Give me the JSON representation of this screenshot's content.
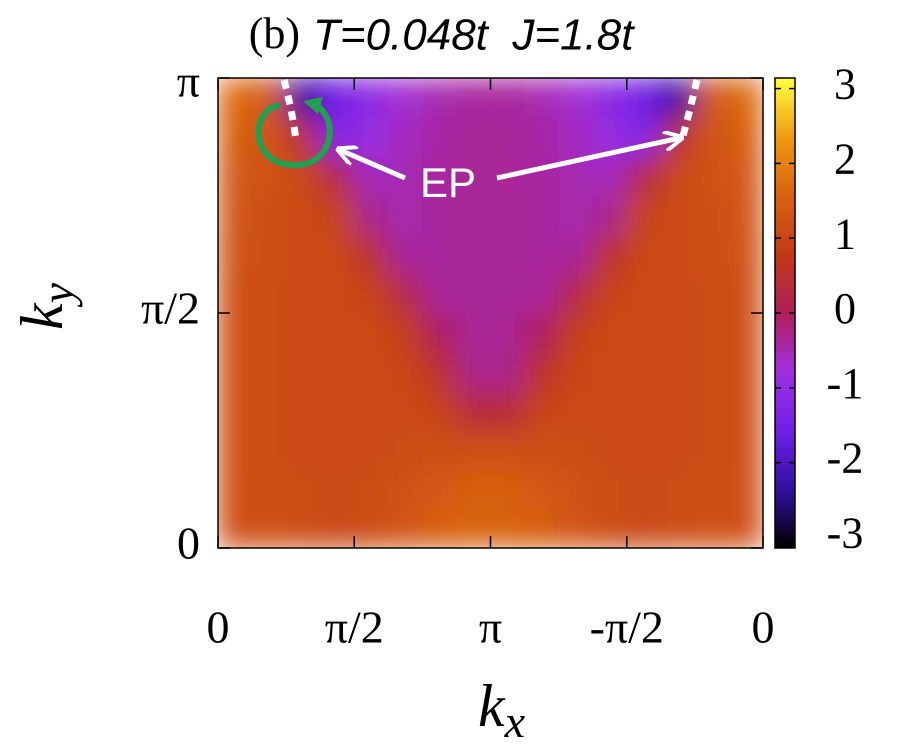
{
  "chart_data": {
    "type": "heatmap",
    "title": "(b)",
    "subtitle": "T=0.048t  J=1.8t",
    "xlabel": {
      "main": "k",
      "sub": "x"
    },
    "ylabel": {
      "main": "k",
      "sub": "y"
    },
    "annotations": [
      "EP"
    ],
    "xlim": [
      0,
      6.2832
    ],
    "ylim": [
      0,
      3.1416
    ],
    "zlim": [
      -3.1416,
      3.1416
    ],
    "xticks": [
      0,
      {
        "value": 1.5708,
        "label": "π/2"
      },
      {
        "value": 3.1416,
        "label": "π"
      },
      {
        "value": 4.7124,
        "label": "-π/2"
      },
      {
        "value": 6.2832,
        "label": "0"
      }
    ],
    "yticks": [
      0,
      {
        "value": 1.5708,
        "label": "π/2"
      },
      {
        "value": 3.1416,
        "label": "π"
      }
    ],
    "zticks": [
      -3,
      -2,
      -1,
      0,
      1,
      2,
      3
    ],
    "colormap": [
      "#000000",
      "#3010a0",
      "#7020e8",
      "#a030e0",
      "#b01e5a",
      "#c23a18",
      "#d86210",
      "#f09a10",
      "#ffff40"
    ],
    "x": [
      0.196,
      0.589,
      0.982,
      1.374,
      1.767,
      2.16,
      2.553,
      2.945,
      3.338,
      3.73,
      4.123,
      4.516,
      4.909,
      5.301,
      5.694,
      6.087
    ],
    "y": [
      0.131,
      0.393,
      0.654,
      0.916,
      1.178,
      1.44,
      1.702,
      1.963,
      2.225,
      2.487,
      2.749,
      3.011
    ],
    "z": [
      [
        1.2,
        1.2,
        1.15,
        1.1,
        1.15,
        1.3,
        1.5,
        1.6,
        1.6,
        1.5,
        1.3,
        1.15,
        1.1,
        1.15,
        1.2,
        1.2
      ],
      [
        1.2,
        1.2,
        1.15,
        1.1,
        1.15,
        1.25,
        1.4,
        1.5,
        1.5,
        1.4,
        1.25,
        1.15,
        1.1,
        1.15,
        1.2,
        1.2
      ],
      [
        1.2,
        1.15,
        1.1,
        1.1,
        1.1,
        1.15,
        1.2,
        1.2,
        1.2,
        1.2,
        1.15,
        1.1,
        1.1,
        1.1,
        1.15,
        1.2
      ],
      [
        1.2,
        1.15,
        1.1,
        1.1,
        1.1,
        1.1,
        1.0,
        0.4,
        0.4,
        1.0,
        1.1,
        1.1,
        1.1,
        1.1,
        1.15,
        1.2
      ],
      [
        1.2,
        1.15,
        1.1,
        1.1,
        1.1,
        1.05,
        0.6,
        -0.3,
        -0.3,
        0.6,
        1.05,
        1.1,
        1.1,
        1.1,
        1.15,
        1.2
      ],
      [
        1.2,
        1.15,
        1.1,
        1.1,
        1.1,
        0.9,
        0.0,
        -0.35,
        -0.35,
        0.0,
        0.9,
        1.1,
        1.1,
        1.1,
        1.15,
        1.2
      ],
      [
        1.2,
        1.15,
        1.1,
        1.1,
        1.0,
        0.3,
        -0.4,
        -0.35,
        -0.35,
        -0.4,
        0.3,
        1.0,
        1.1,
        1.1,
        1.15,
        1.2
      ],
      [
        1.25,
        1.2,
        1.1,
        1.1,
        0.6,
        -0.4,
        -0.4,
        -0.35,
        -0.35,
        -0.4,
        -0.4,
        0.6,
        1.1,
        1.1,
        1.2,
        1.25
      ],
      [
        1.3,
        1.2,
        1.1,
        1.0,
        -0.3,
        -0.5,
        -0.4,
        -0.35,
        -0.35,
        -0.4,
        -0.5,
        -0.3,
        1.0,
        1.1,
        1.2,
        1.3
      ],
      [
        1.4,
        1.25,
        1.1,
        0.3,
        -0.6,
        -0.5,
        -0.4,
        -0.35,
        -0.35,
        -0.4,
        -0.5,
        -0.6,
        0.3,
        1.1,
        1.25,
        1.4
      ],
      [
        1.5,
        1.3,
        0.5,
        -1.3,
        -0.9,
        -0.6,
        -0.45,
        -0.35,
        -0.35,
        -0.45,
        -0.6,
        -0.9,
        -1.3,
        0.5,
        1.3,
        1.5
      ],
      [
        1.7,
        1.4,
        -2.3,
        -1.6,
        -1.1,
        -0.7,
        -0.5,
        -0.4,
        -0.4,
        -0.5,
        -0.7,
        -1.1,
        -1.6,
        -2.3,
        1.4,
        1.7
      ]
    ]
  }
}
